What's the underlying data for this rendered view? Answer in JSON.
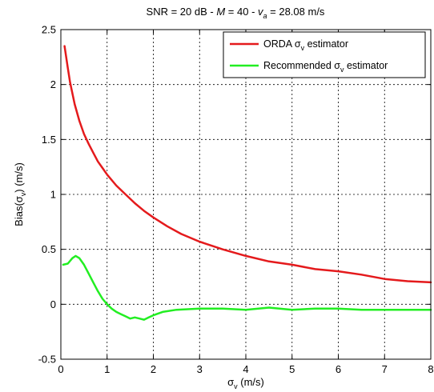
{
  "chart_data": {
    "type": "line",
    "title": {
      "prefix": "SNR = 20 dB - ",
      "m_symbol": "M",
      "m_part": " = 40 - ",
      "v_symbol": "v",
      "v_sub": "a",
      "v_part": " = 28.08 m/s"
    },
    "xlabel": {
      "sigma": "σ",
      "sub": "v",
      "unit": " (m/s)"
    },
    "ylabel": {
      "prefix": "Bias(",
      "sigma": "σ",
      "sub": "v",
      "suffix": ") (m/s)"
    },
    "xlim": [
      0,
      8
    ],
    "ylim": [
      -0.5,
      2.5
    ],
    "xticks": [
      0,
      1,
      2,
      3,
      4,
      5,
      6,
      7,
      8
    ],
    "xtick_labels": [
      "0",
      "1",
      "2",
      "3",
      "4",
      "5",
      "6",
      "7",
      "8"
    ],
    "yticks": [
      -0.5,
      0,
      0.5,
      1,
      1.5,
      2,
      2.5
    ],
    "ytick_labels": [
      "-0.5",
      "0",
      "0.5",
      "1",
      "1.5",
      "2",
      "2.5"
    ],
    "grid": true,
    "legend_position": "top-right",
    "series": [
      {
        "name": "ORDA",
        "legend": {
          "prefix": "ORDA ",
          "sigma": "σ",
          "sub": "v",
          "suffix": " estimator"
        },
        "color": "#e41a1c",
        "x": [
          0.08,
          0.15,
          0.2,
          0.3,
          0.4,
          0.5,
          0.6,
          0.7,
          0.8,
          0.9,
          1.0,
          1.2,
          1.4,
          1.6,
          1.8,
          2.0,
          2.3,
          2.6,
          3.0,
          3.5,
          4.0,
          4.5,
          5.0,
          5.5,
          6.0,
          6.5,
          7.0,
          7.5,
          8.0
        ],
        "y": [
          2.35,
          2.15,
          2.02,
          1.82,
          1.67,
          1.55,
          1.46,
          1.38,
          1.3,
          1.24,
          1.18,
          1.08,
          1.0,
          0.92,
          0.85,
          0.79,
          0.71,
          0.64,
          0.57,
          0.5,
          0.44,
          0.39,
          0.36,
          0.32,
          0.3,
          0.27,
          0.23,
          0.21,
          0.2
        ]
      },
      {
        "name": "Recommended",
        "legend": {
          "prefix": "Recommended ",
          "sigma": "σ",
          "sub": "v",
          "suffix": " estimator"
        },
        "color": "#22ee22",
        "x": [
          0.05,
          0.15,
          0.25,
          0.32,
          0.4,
          0.5,
          0.6,
          0.7,
          0.8,
          0.9,
          1.0,
          1.1,
          1.2,
          1.3,
          1.4,
          1.5,
          1.6,
          1.7,
          1.8,
          1.9,
          2.0,
          2.2,
          2.5,
          3.0,
          3.5,
          4.0,
          4.5,
          5.0,
          5.5,
          6.0,
          6.5,
          7.0,
          7.5,
          8.0
        ],
        "y": [
          0.36,
          0.37,
          0.42,
          0.44,
          0.42,
          0.36,
          0.28,
          0.2,
          0.12,
          0.05,
          0.0,
          -0.04,
          -0.07,
          -0.09,
          -0.11,
          -0.13,
          -0.12,
          -0.13,
          -0.14,
          -0.12,
          -0.1,
          -0.07,
          -0.05,
          -0.04,
          -0.04,
          -0.05,
          -0.03,
          -0.05,
          -0.04,
          -0.04,
          -0.05,
          -0.05,
          -0.05,
          -0.05
        ]
      }
    ]
  }
}
